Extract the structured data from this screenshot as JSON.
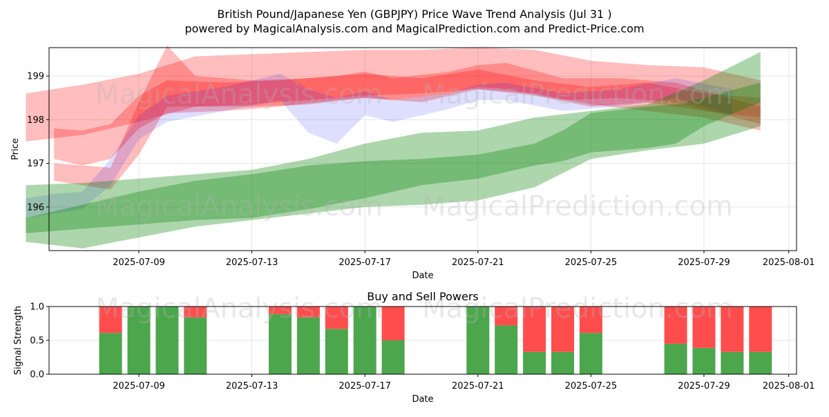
{
  "header": {
    "title": "British Pound/Japanese Yen (GBPJPY) Price Wave Trend Analysis (Jul 31 )",
    "subtitle": "powered by MagicalAnalysis.com and MagicalPrediction.com and Predict-Price.com"
  },
  "watermarks": [
    "MagicalAnalysis.com",
    "MagicalPrediction.com"
  ],
  "colors": {
    "red_band": "#ff0000",
    "blue_band": "#0000ff",
    "green_band": "#008000",
    "buy": "#4ca64c",
    "sell": "#ff4d4d",
    "grid": "#e6e6e6"
  },
  "chart_data": [
    {
      "type": "area",
      "title": "",
      "xlabel": "Date",
      "ylabel": "Price",
      "x_ticks": [
        "2025-07-09",
        "2025-07-13",
        "2025-07-17",
        "2025-07-21",
        "2025-07-25",
        "2025-07-29",
        "2025-08-01"
      ],
      "y_ticks": [
        196,
        197,
        198,
        199
      ],
      "xlim": [
        "2025-07-04",
        "2025-07-31"
      ],
      "ylim": [
        195,
        199.65
      ],
      "grid": true,
      "series": [
        {
          "color": "red",
          "x": [
            "2025-07-05",
            "2025-07-07",
            "2025-07-09",
            "2025-07-11",
            "2025-07-13",
            "2025-07-15",
            "2025-07-17",
            "2025-07-19",
            "2025-07-21",
            "2025-07-23",
            "2025-07-25",
            "2025-07-27",
            "2025-07-29",
            "2025-07-31"
          ],
          "upper": [
            198.6,
            198.8,
            199.05,
            199.45,
            199.5,
            199.55,
            199.6,
            199.6,
            199.65,
            199.6,
            199.35,
            199.25,
            199.2,
            198.9
          ],
          "lower": [
            197.5,
            197.65,
            197.95,
            198.3,
            198.35,
            198.45,
            198.55,
            198.6,
            198.7,
            198.6,
            198.35,
            198.2,
            198.05,
            197.75
          ]
        },
        {
          "color": "red",
          "x": [
            "2025-07-06",
            "2025-07-07",
            "2025-07-08",
            "2025-07-09",
            "2025-07-10",
            "2025-07-12",
            "2025-07-14",
            "2025-07-16",
            "2025-07-17",
            "2025-07-18",
            "2025-07-20",
            "2025-07-21",
            "2025-07-22",
            "2025-07-24",
            "2025-07-26",
            "2025-07-28",
            "2025-07-31"
          ],
          "upper": [
            197.8,
            197.75,
            197.9,
            198.55,
            198.9,
            198.85,
            198.9,
            199.0,
            199.1,
            198.95,
            199.1,
            199.25,
            199.3,
            198.95,
            198.95,
            198.85,
            198.3
          ],
          "lower": [
            197.1,
            196.95,
            197.1,
            197.8,
            198.15,
            198.2,
            198.3,
            198.45,
            198.5,
            198.45,
            198.6,
            198.75,
            198.7,
            198.45,
            198.5,
            198.4,
            197.9
          ]
        },
        {
          "color": "red",
          "x": [
            "2025-07-06",
            "2025-07-08",
            "2025-07-09",
            "2025-07-10",
            "2025-07-11",
            "2025-07-13",
            "2025-07-15",
            "2025-07-17",
            "2025-07-19",
            "2025-07-21",
            "2025-07-23",
            "2025-07-25",
            "2025-07-27",
            "2025-07-29",
            "2025-07-31"
          ],
          "upper": [
            197.0,
            196.9,
            198.4,
            199.7,
            199.0,
            198.9,
            198.95,
            199.05,
            198.95,
            199.15,
            198.9,
            198.75,
            198.85,
            198.6,
            198.5
          ],
          "lower": [
            196.6,
            196.4,
            197.2,
            198.3,
            198.3,
            198.3,
            198.35,
            198.5,
            198.4,
            198.7,
            198.55,
            198.3,
            198.4,
            198.2,
            198.05
          ]
        },
        {
          "color": "blue",
          "x": [
            "2025-07-05",
            "2025-07-06",
            "2025-07-07",
            "2025-07-08",
            "2025-07-09",
            "2025-07-10",
            "2025-07-12",
            "2025-07-14",
            "2025-07-15",
            "2025-07-16",
            "2025-07-17",
            "2025-07-18",
            "2025-07-20",
            "2025-07-21",
            "2025-07-22",
            "2025-07-24",
            "2025-07-26",
            "2025-07-28",
            "2025-07-30"
          ],
          "upper": [
            196.2,
            196.3,
            196.35,
            197.1,
            198.1,
            198.55,
            198.75,
            199.05,
            198.7,
            198.5,
            198.65,
            198.45,
            198.6,
            198.8,
            198.85,
            198.6,
            198.7,
            198.95,
            198.7
          ],
          "lower": [
            195.75,
            195.85,
            195.95,
            196.5,
            197.55,
            197.95,
            198.2,
            198.45,
            197.7,
            197.45,
            198.1,
            197.95,
            198.25,
            198.45,
            198.45,
            198.2,
            198.3,
            198.5,
            198.1
          ]
        },
        {
          "color": "green",
          "x": [
            "2025-07-05",
            "2025-07-07",
            "2025-07-09",
            "2025-07-11",
            "2025-07-13",
            "2025-07-15",
            "2025-07-17",
            "2025-07-19",
            "2025-07-21",
            "2025-07-23",
            "2025-07-25",
            "2025-07-27",
            "2025-07-29",
            "2025-07-31"
          ],
          "upper": [
            196.5,
            196.55,
            196.65,
            196.75,
            196.85,
            197.1,
            197.45,
            197.7,
            197.75,
            198.05,
            198.2,
            198.35,
            198.9,
            199.55
          ],
          "lower": [
            195.2,
            195.05,
            195.3,
            195.55,
            195.7,
            195.85,
            196.0,
            196.05,
            196.15,
            196.45,
            197.1,
            197.3,
            197.45,
            197.85
          ]
        },
        {
          "color": "green",
          "x": [
            "2025-07-05",
            "2025-07-07",
            "2025-07-09",
            "2025-07-11",
            "2025-07-13",
            "2025-07-15",
            "2025-07-17",
            "2025-07-19",
            "2025-07-21",
            "2025-07-23",
            "2025-07-24",
            "2025-07-25",
            "2025-07-27",
            "2025-07-28",
            "2025-07-29",
            "2025-07-31"
          ],
          "upper": [
            195.75,
            196.05,
            196.35,
            196.6,
            196.75,
            196.95,
            197.05,
            197.1,
            197.2,
            197.45,
            197.75,
            198.15,
            198.3,
            198.35,
            198.5,
            198.85
          ],
          "lower": [
            195.4,
            195.5,
            195.6,
            195.7,
            195.75,
            195.95,
            196.2,
            196.5,
            196.65,
            196.95,
            197.05,
            197.25,
            197.35,
            197.45,
            197.85,
            198.4
          ]
        }
      ]
    },
    {
      "type": "bar",
      "title": "Buy and Sell Powers",
      "xlabel": "Date",
      "ylabel": "Signal Strength",
      "x_ticks": [
        "2025-07-09",
        "2025-07-13",
        "2025-07-17",
        "2025-07-21",
        "2025-07-25",
        "2025-07-29",
        "2025-08-01"
      ],
      "y_ticks": [
        0.0,
        0.5,
        1.0
      ],
      "ylim": [
        0,
        1
      ],
      "grid": true,
      "dates": [
        "2025-07-08",
        "2025-07-09",
        "2025-07-10",
        "2025-07-11",
        "2025-07-14",
        "2025-07-15",
        "2025-07-16",
        "2025-07-17",
        "2025-07-18",
        "2025-07-21",
        "2025-07-22",
        "2025-07-23",
        "2025-07-24",
        "2025-07-25",
        "2025-07-28",
        "2025-07-29",
        "2025-07-30",
        "2025-07-31"
      ],
      "series": [
        {
          "name": "Buy",
          "values": [
            0.61,
            1.0,
            1.0,
            0.84,
            0.89,
            0.84,
            0.67,
            1.0,
            0.5,
            1.0,
            0.72,
            0.33,
            0.33,
            0.61,
            0.45,
            0.39,
            0.33,
            0.33
          ]
        },
        {
          "name": "Sell",
          "values": [
            0.39,
            0.0,
            0.0,
            0.16,
            0.11,
            0.16,
            0.33,
            0.0,
            0.5,
            0.0,
            0.28,
            0.67,
            0.67,
            0.39,
            0.55,
            0.61,
            0.67,
            0.67
          ]
        }
      ]
    }
  ]
}
